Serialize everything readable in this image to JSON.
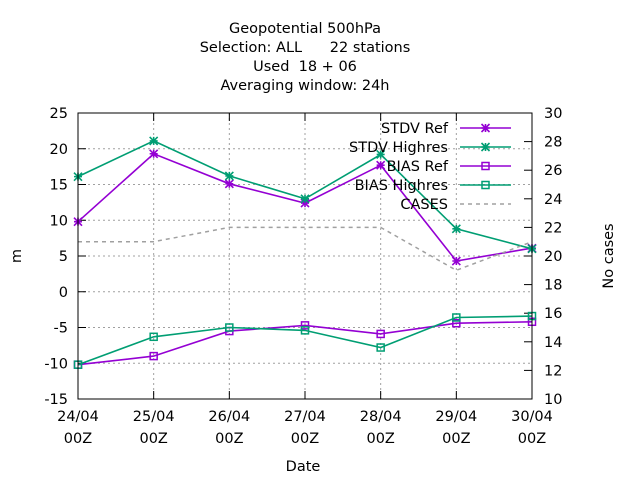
{
  "chart_data": {
    "type": "line",
    "title_lines": [
      "Geopotential 500hPa",
      "Selection: ALL      22 stations",
      "Used  18 + 06",
      "Averaging window: 24h"
    ],
    "xlabel": "Date",
    "ylabel": "m",
    "y2label": "No cases",
    "categories": [
      [
        "24/04",
        "00Z"
      ],
      [
        "25/04",
        "00Z"
      ],
      [
        "26/04",
        "00Z"
      ],
      [
        "27/04",
        "00Z"
      ],
      [
        "28/04",
        "00Z"
      ],
      [
        "29/04",
        "00Z"
      ],
      [
        "30/04",
        "00Z"
      ]
    ],
    "ylim": [
      -15,
      25
    ],
    "yticks": [
      "-15",
      "-10",
      "-5",
      "0",
      "5",
      "10",
      "15",
      "20",
      "25"
    ],
    "y2lim": [
      10,
      30
    ],
    "y2ticks": [
      "10",
      "12",
      "14",
      "16",
      "18",
      "20",
      "22",
      "24",
      "26",
      "28",
      "30"
    ],
    "grid": true,
    "legend_position": "top-right",
    "series": [
      {
        "name": "STDV Ref",
        "axis": "y",
        "marker": "x",
        "color": "#9400D3",
        "values": [
          9.8,
          19.3,
          15.1,
          12.4,
          17.7,
          4.3,
          6.1
        ]
      },
      {
        "name": "STDV Highres",
        "axis": "y",
        "marker": "x",
        "color": "#009E73",
        "values": [
          16.1,
          21.1,
          16.2,
          13.0,
          19.2,
          8.8,
          6.0
        ]
      },
      {
        "name": "BIAS Ref",
        "axis": "y",
        "marker": "square",
        "color": "#9400D3",
        "values": [
          -10.2,
          -9.0,
          -5.5,
          -4.7,
          -5.9,
          -4.4,
          -4.2
        ]
      },
      {
        "name": "BIAS Highres",
        "axis": "y",
        "marker": "square",
        "color": "#009E73",
        "values": [
          -10.2,
          -6.3,
          -5.0,
          -5.4,
          -7.8,
          -3.6,
          -3.4
        ]
      },
      {
        "name": "CASES",
        "axis": "y2",
        "marker": "none",
        "dashed": true,
        "color": "#A0A0A0",
        "values": [
          21,
          21,
          22,
          22,
          22,
          19,
          21
        ]
      }
    ]
  }
}
